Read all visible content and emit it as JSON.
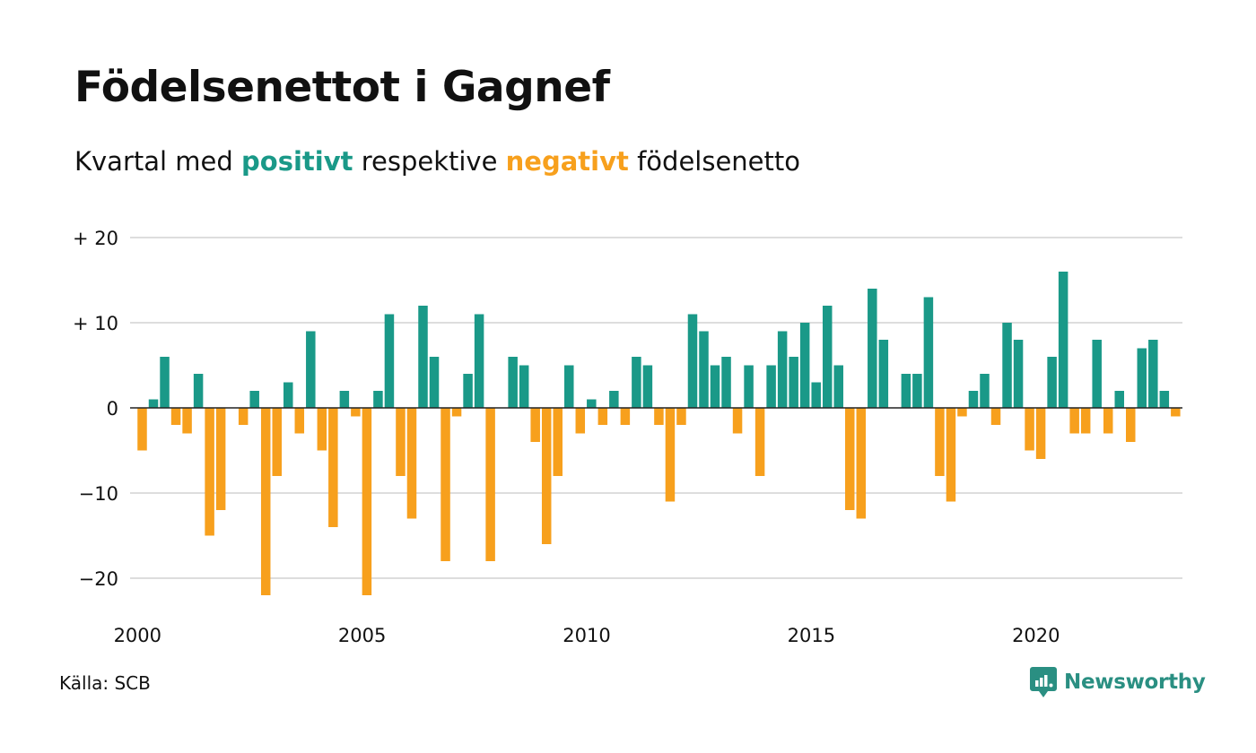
{
  "title": "Födelsenettot i Gagnef",
  "subtitle": {
    "prefix": "Kvartal med ",
    "positive_word": "positivt",
    "middle": " respektive ",
    "negative_word": "negativt",
    "suffix": " födelsenetto"
  },
  "source": "Källa: SCB",
  "brand": {
    "name": "Newsworthy",
    "icon": "newsworthy-logo-icon"
  },
  "colors": {
    "positive": "#1a9988",
    "negative": "#f7a01d",
    "grid": "#dddddd",
    "zero_line": "#222222",
    "text": "#111111"
  },
  "chart_data": {
    "type": "bar",
    "x_start": "2000 Q1",
    "x_tick_labels": [
      "2000",
      "2005",
      "2010",
      "2015",
      "2020"
    ],
    "y_tick_labels": [
      "+ 20",
      "+ 10",
      "0",
      "−10",
      "−20"
    ],
    "y_ticks": [
      20,
      10,
      0,
      -10,
      -20
    ],
    "ylim": [
      -24,
      21
    ],
    "grid": true,
    "values": [
      -5,
      1,
      6,
      -2,
      -3,
      4,
      -15,
      -12,
      0,
      -2,
      2,
      -22,
      -8,
      3,
      -3,
      9,
      -5,
      -14,
      2,
      -1,
      -22,
      2,
      11,
      -8,
      -13,
      12,
      6,
      -18,
      -1,
      4,
      11,
      -18,
      0,
      6,
      5,
      -4,
      -16,
      -8,
      5,
      -3,
      1,
      -2,
      2,
      -2,
      6,
      5,
      -2,
      -11,
      -2,
      11,
      9,
      5,
      6,
      -3,
      5,
      -8,
      5,
      9,
      6,
      10,
      3,
      12,
      5,
      -12,
      -13,
      14,
      8,
      0,
      4,
      4,
      13,
      -8,
      -11,
      -1,
      2,
      4,
      -2,
      10,
      8,
      -5,
      -6,
      6,
      16,
      -3,
      -3,
      8,
      -3,
      2,
      -4,
      7,
      8,
      2,
      -1
    ]
  }
}
